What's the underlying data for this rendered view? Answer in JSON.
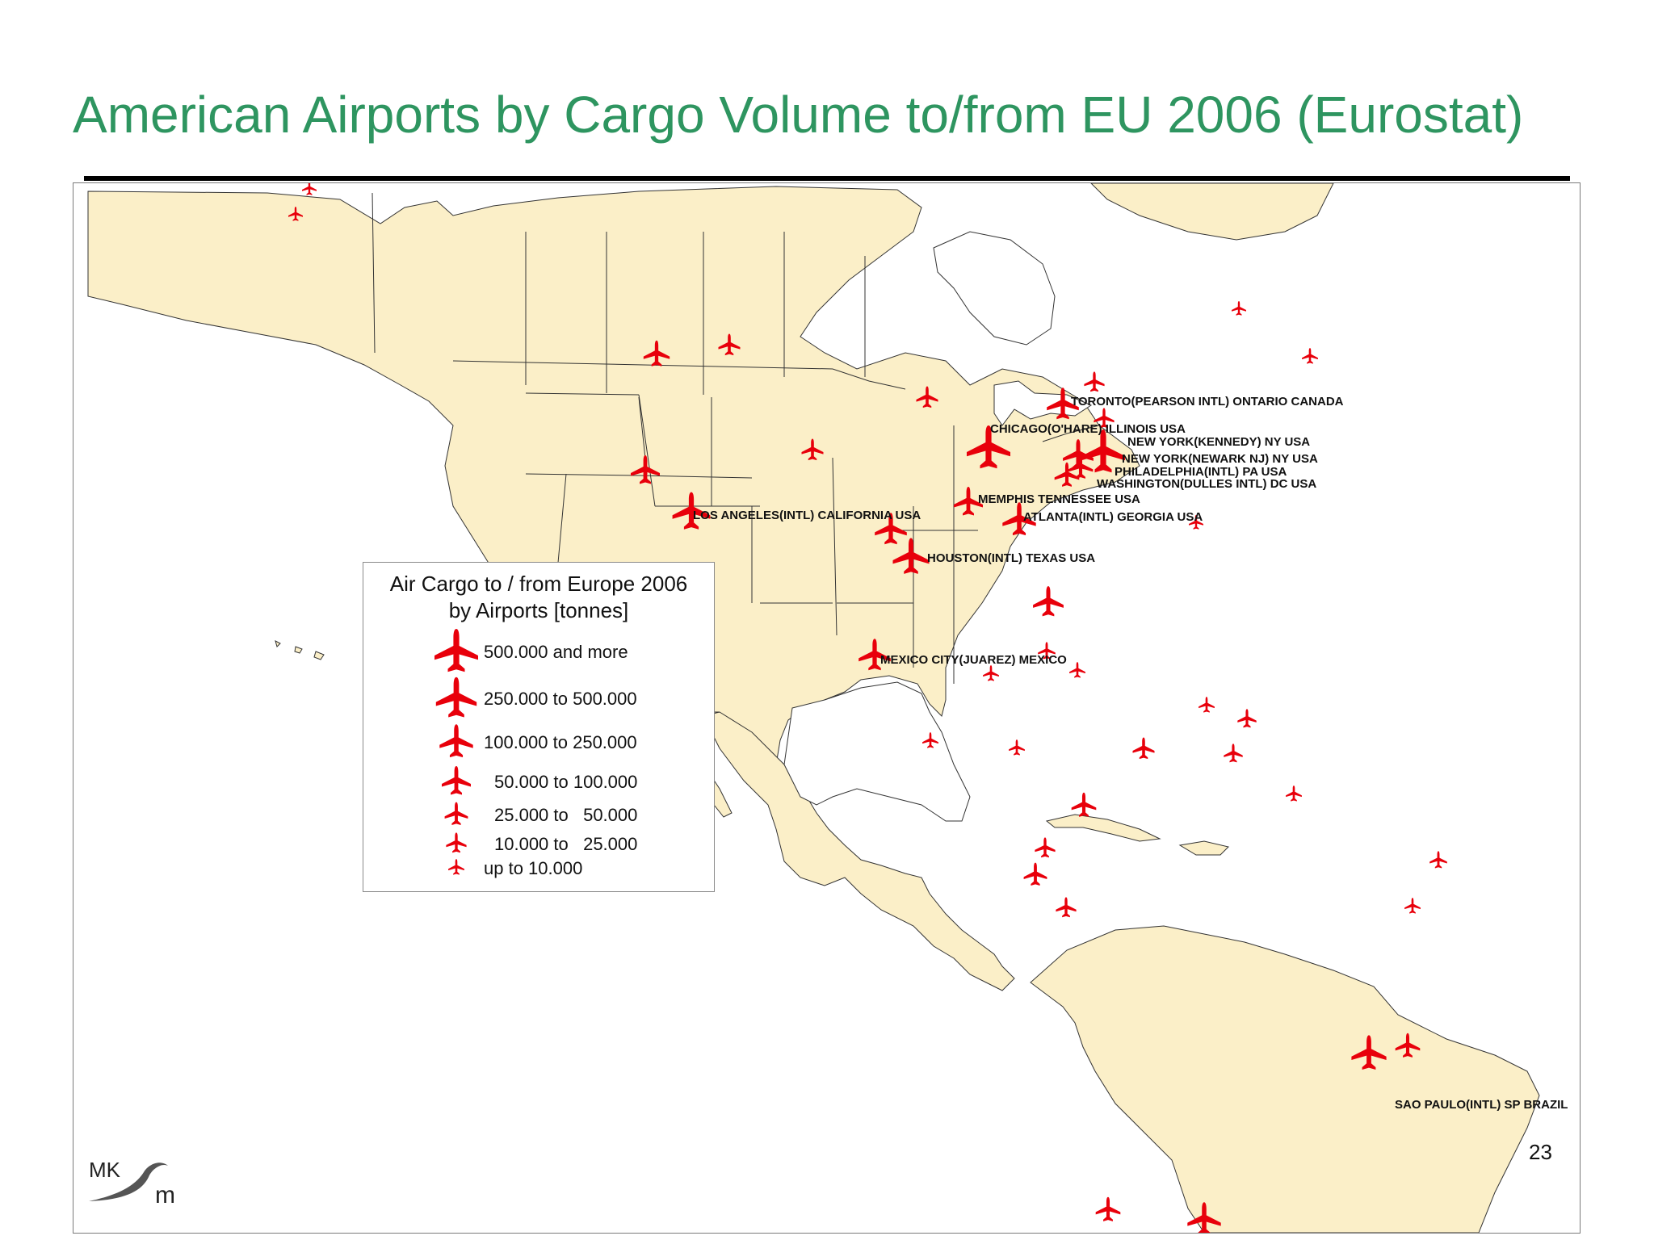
{
  "title": "American Airports by Cargo Volume to/from EU 2006 (Eurostat)",
  "page_number": "23",
  "logo_text": "MKSm",
  "colors": {
    "title": "#2e9560",
    "land": "#fbefc8",
    "border": "#333333",
    "airplane": "#e8000b"
  },
  "map_labels": [
    "TORONTO(PEARSON INTL) ONTARIO CANADA",
    "CHICAGO(O'HARE) ILLINOIS USA",
    "NEW YORK(KENNEDY) NY USA",
    "NEW YORK(NEWARK NJ) NY USA",
    "PHILADELPHIA(INTL) PA USA",
    "WASHINGTON(DULLES INTL) DC USA",
    "MEMPHIS TENNESSEE USA",
    "LOS ANGELES(INTL) CALIFORNIA USA",
    "ATLANTA(INTL) GEORGIA USA",
    "HOUSTON(INTL) TEXAS USA",
    "MEXICO CITY(JUAREZ) MEXICO",
    "SAO PAULO(INTL) SP BRAZIL"
  ],
  "legend": {
    "title_line1": "Air Cargo to / from Europe 2006",
    "title_line2": "by Airports [tonnes]",
    "classes": [
      {
        "label": "500.000 and more",
        "size_class": 7
      },
      {
        "label": "250.000 to 500.000",
        "size_class": 6
      },
      {
        "label": "100.000 to 250.000",
        "size_class": 5
      },
      {
        "label": "50.000 to 100.000",
        "size_class": 4
      },
      {
        "label": "25.000 to   50.000",
        "size_class": 3
      },
      {
        "label": "10.000 to   25.000",
        "size_class": 2
      },
      {
        "label": "up to 10.000",
        "size_class": 1
      }
    ]
  },
  "airports": [
    {
      "size_class": 7,
      "labeled": "CHICAGO(O'HARE) ILLINOIS USA"
    },
    {
      "size_class": 7,
      "labeled": "NEW YORK(KENNEDY) NY USA"
    },
    {
      "size_class": 6,
      "labeled": "LOS ANGELES(INTL) CALIFORNIA USA"
    },
    {
      "size_class": 6,
      "labeled": "ATLANTA(INTL) GEORGIA USA"
    },
    {
      "size_class": 6,
      "labeled": "HOUSTON(INTL) TEXAS USA"
    },
    {
      "size_class": 6,
      "labeled": "SAO PAULO(INTL) SP BRAZIL"
    },
    {
      "size_class": 5,
      "labeled": "TORONTO(PEARSON INTL) ONTARIO CANADA"
    },
    {
      "size_class": 5,
      "labeled": "NEW YORK(NEWARK NJ) NY USA"
    },
    {
      "size_class": 5,
      "labeled": "MEMPHIS TENNESSEE USA"
    },
    {
      "size_class": 5,
      "labeled": "MEXICO CITY(JUAREZ) MEXICO"
    },
    {
      "size_class": 4,
      "labeled": "PHILADELPHIA(INTL) PA USA"
    },
    {
      "size_class": 4,
      "labeled": "WASHINGTON(DULLES INTL) DC USA"
    }
  ]
}
